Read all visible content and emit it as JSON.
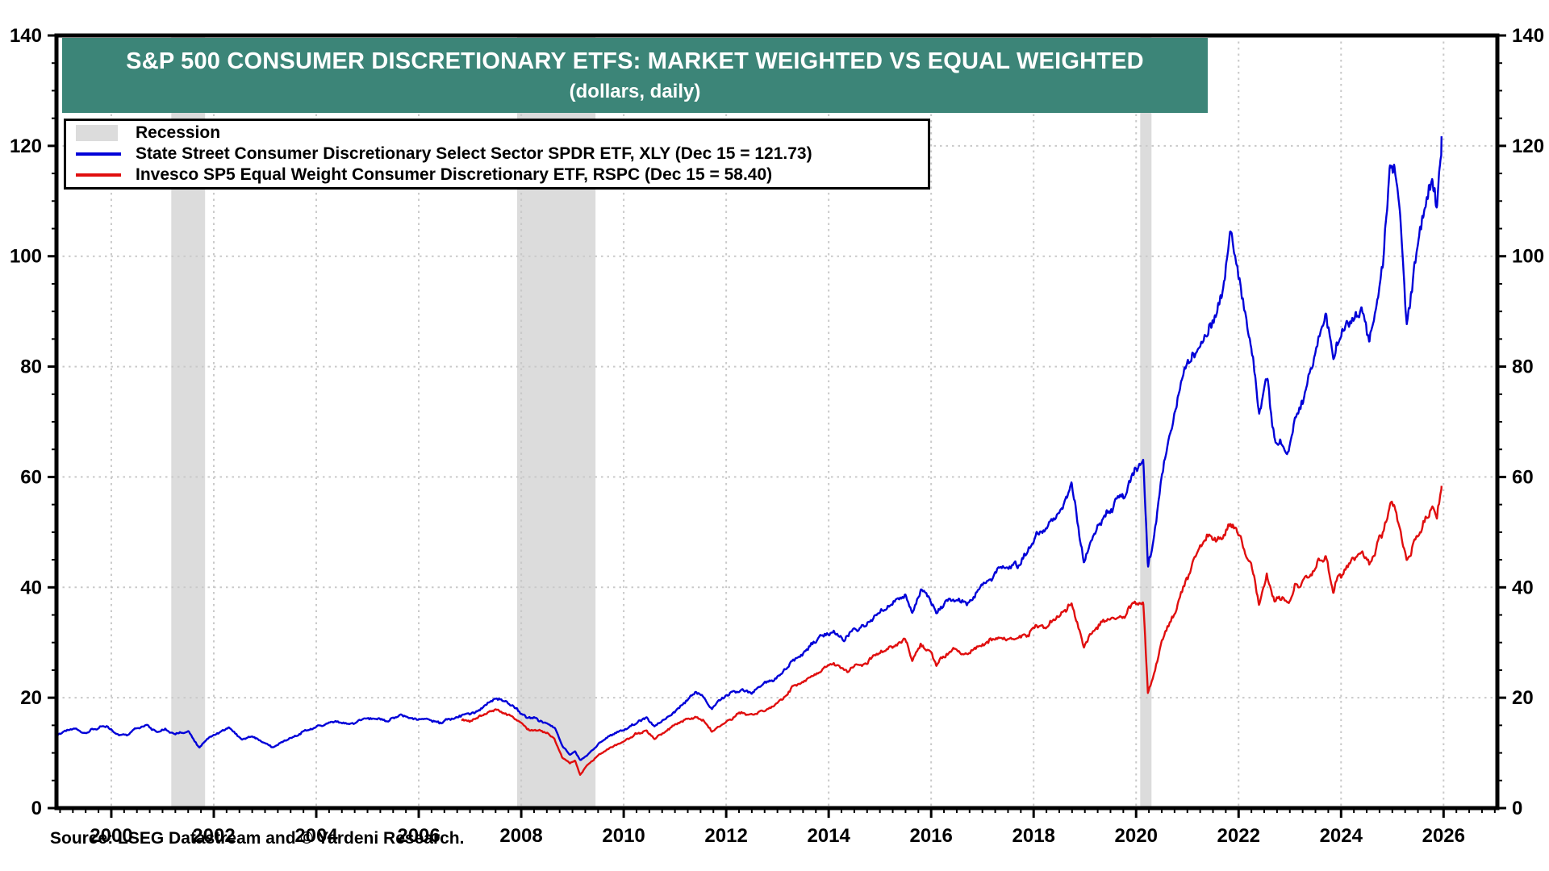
{
  "title": {
    "line1": "S&P 500 CONSUMER DISCRETIONARY ETFS: MARKET WEIGHTED VS EQUAL WEIGHTED",
    "line2": "(dollars, daily)"
  },
  "source": "Source: LSEG Datastream and © Yardeni Research.",
  "colors": {
    "banner_teal": "#3C8578",
    "xly_blue": "#0000D8",
    "rspc_red": "#E00E0E",
    "recession_gray": "#DCDCDC",
    "grid_gray": "#C9C9C9",
    "axis_black": "#000000",
    "background": "#FFFFFF"
  },
  "legend": {
    "items": [
      {
        "key": "recession",
        "type": "swatch",
        "color": "#DCDCDC",
        "label": "Recession"
      },
      {
        "key": "xly",
        "type": "line",
        "color": "#0000D8",
        "label": "State Street Consumer Discretionary Select Sector SPDR ETF, XLY (Dec 15 = 121.73)"
      },
      {
        "key": "rspc",
        "type": "line",
        "color": "#E00E0E",
        "label": "Invesco SP5 Equal Weight Consumer Discretionary ETF, RSPC (Dec 15 = 58.40)"
      }
    ]
  },
  "chart_data": {
    "type": "line",
    "title": "S&P 500 Consumer Discretionary ETFs: Market Weighted vs Equal Weighted",
    "subtitle": "(dollars, daily)",
    "xlabel": "",
    "ylabel": "dollars",
    "x_domain": [
      1998.93,
      2027.05
    ],
    "ylim": [
      0,
      140
    ],
    "y_major_ticks": [
      0,
      20,
      40,
      60,
      80,
      100,
      120,
      140
    ],
    "y_minor_step": 5,
    "x_major_ticks": [
      2000,
      2002,
      2004,
      2006,
      2008,
      2010,
      2012,
      2014,
      2016,
      2018,
      2020,
      2022,
      2024,
      2026
    ],
    "x_minor_step": 0.25,
    "grid": "dotted",
    "legend_position": "top-left",
    "recessions": [
      {
        "label": "2001 recession",
        "from": 2001.17,
        "to": 2001.83
      },
      {
        "label": "2008-09 recession",
        "from": 2007.92,
        "to": 2009.45
      },
      {
        "label": "2020 recession",
        "from": 2020.08,
        "to": 2020.3
      }
    ],
    "series": [
      {
        "name": "State Street Consumer Discretionary Select Sector SPDR ETF, XLY",
        "last_point_label": "Dec 15 = 121.73",
        "last_value": 121.73,
        "color": "#0000D8",
        "anchors": [
          [
            1998.93,
            13.0
          ],
          [
            1999.1,
            14.0
          ],
          [
            1999.3,
            14.6
          ],
          [
            1999.5,
            13.8
          ],
          [
            1999.7,
            14.6
          ],
          [
            1999.9,
            14.9
          ],
          [
            2000.1,
            13.6
          ],
          [
            2000.3,
            13.2
          ],
          [
            2000.5,
            14.6
          ],
          [
            2000.7,
            14.9
          ],
          [
            2000.9,
            13.6
          ],
          [
            2001.05,
            14.2
          ],
          [
            2001.25,
            13.2
          ],
          [
            2001.5,
            13.9
          ],
          [
            2001.72,
            10.9
          ],
          [
            2001.9,
            12.8
          ],
          [
            2002.1,
            13.8
          ],
          [
            2002.3,
            14.6
          ],
          [
            2002.55,
            12.2
          ],
          [
            2002.75,
            13.0
          ],
          [
            2002.95,
            11.9
          ],
          [
            2003.15,
            11.2
          ],
          [
            2003.4,
            12.4
          ],
          [
            2003.65,
            13.4
          ],
          [
            2003.9,
            14.3
          ],
          [
            2004.15,
            15.0
          ],
          [
            2004.4,
            15.4
          ],
          [
            2004.65,
            14.9
          ],
          [
            2004.9,
            15.8
          ],
          [
            2005.15,
            16.0
          ],
          [
            2005.4,
            15.6
          ],
          [
            2005.65,
            16.4
          ],
          [
            2005.9,
            16.1
          ],
          [
            2006.15,
            16.4
          ],
          [
            2006.4,
            15.7
          ],
          [
            2006.65,
            16.6
          ],
          [
            2006.9,
            17.2
          ],
          [
            2007.1,
            17.6
          ],
          [
            2007.3,
            18.6
          ],
          [
            2007.5,
            19.9
          ],
          [
            2007.7,
            19.2
          ],
          [
            2007.9,
            18.2
          ],
          [
            2008.1,
            16.4
          ],
          [
            2008.3,
            16.2
          ],
          [
            2008.5,
            15.6
          ],
          [
            2008.65,
            14.4
          ],
          [
            2008.8,
            11.2
          ],
          [
            2008.95,
            9.6
          ],
          [
            2009.05,
            10.2
          ],
          [
            2009.15,
            8.7
          ],
          [
            2009.3,
            9.8
          ],
          [
            2009.5,
            11.6
          ],
          [
            2009.7,
            12.8
          ],
          [
            2009.9,
            13.8
          ],
          [
            2010.1,
            14.6
          ],
          [
            2010.3,
            15.8
          ],
          [
            2010.45,
            16.1
          ],
          [
            2010.6,
            14.8
          ],
          [
            2010.8,
            16.0
          ],
          [
            2010.95,
            17.2
          ],
          [
            2011.15,
            19.0
          ],
          [
            2011.4,
            20.6
          ],
          [
            2011.55,
            20.0
          ],
          [
            2011.72,
            17.9
          ],
          [
            2011.9,
            19.6
          ],
          [
            2012.1,
            20.8
          ],
          [
            2012.3,
            21.8
          ],
          [
            2012.5,
            21.2
          ],
          [
            2012.7,
            22.6
          ],
          [
            2012.9,
            23.2
          ],
          [
            2013.1,
            24.8
          ],
          [
            2013.3,
            26.8
          ],
          [
            2013.5,
            27.6
          ],
          [
            2013.7,
            29.6
          ],
          [
            2013.95,
            31.2
          ],
          [
            2014.1,
            31.6
          ],
          [
            2014.3,
            29.8
          ],
          [
            2014.5,
            31.6
          ],
          [
            2014.7,
            32.4
          ],
          [
            2014.95,
            34.8
          ],
          [
            2015.1,
            35.6
          ],
          [
            2015.3,
            37.2
          ],
          [
            2015.5,
            38.4
          ],
          [
            2015.63,
            35.4
          ],
          [
            2015.8,
            39.2
          ],
          [
            2015.95,
            38.4
          ],
          [
            2016.1,
            35.4
          ],
          [
            2016.3,
            37.6
          ],
          [
            2016.5,
            38.4
          ],
          [
            2016.7,
            37.8
          ],
          [
            2016.9,
            39.6
          ],
          [
            2017.1,
            41.2
          ],
          [
            2017.3,
            42.6
          ],
          [
            2017.5,
            43.6
          ],
          [
            2017.7,
            44.4
          ],
          [
            2017.9,
            46.8
          ],
          [
            2018.05,
            49.4
          ],
          [
            2018.2,
            49.0
          ],
          [
            2018.4,
            51.6
          ],
          [
            2018.6,
            54.6
          ],
          [
            2018.74,
            57.2
          ],
          [
            2018.85,
            52.0
          ],
          [
            2018.98,
            44.8
          ],
          [
            2019.1,
            48.6
          ],
          [
            2019.3,
            52.4
          ],
          [
            2019.5,
            54.6
          ],
          [
            2019.7,
            56.4
          ],
          [
            2019.9,
            59.6
          ],
          [
            2020.05,
            62.4
          ],
          [
            2020.14,
            63.8
          ],
          [
            2020.23,
            43.8
          ],
          [
            2020.35,
            50.0
          ],
          [
            2020.5,
            60.0
          ],
          [
            2020.65,
            68.0
          ],
          [
            2020.8,
            73.0
          ],
          [
            2020.95,
            80.0
          ],
          [
            2021.1,
            82.5
          ],
          [
            2021.25,
            84.0
          ],
          [
            2021.4,
            87.0
          ],
          [
            2021.55,
            90.0
          ],
          [
            2021.7,
            96.0
          ],
          [
            2021.83,
            105.5
          ],
          [
            2021.95,
            101.0
          ],
          [
            2022.1,
            92.0
          ],
          [
            2022.25,
            85.0
          ],
          [
            2022.4,
            71.5
          ],
          [
            2022.55,
            78.5
          ],
          [
            2022.7,
            67.5
          ],
          [
            2022.85,
            65.5
          ],
          [
            2022.98,
            63.5
          ],
          [
            2023.1,
            69.5
          ],
          [
            2023.25,
            73.0
          ],
          [
            2023.4,
            77.5
          ],
          [
            2023.55,
            84.0
          ],
          [
            2023.7,
            87.0
          ],
          [
            2023.85,
            80.5
          ],
          [
            2023.98,
            85.5
          ],
          [
            2024.1,
            87.5
          ],
          [
            2024.25,
            89.5
          ],
          [
            2024.4,
            91.5
          ],
          [
            2024.55,
            85.5
          ],
          [
            2024.7,
            91.0
          ],
          [
            2024.82,
            99.0
          ],
          [
            2024.95,
            118.5
          ],
          [
            2025.05,
            116.0
          ],
          [
            2025.15,
            108.0
          ],
          [
            2025.28,
            87.5
          ],
          [
            2025.4,
            96.0
          ],
          [
            2025.55,
            105.0
          ],
          [
            2025.65,
            108.5
          ],
          [
            2025.78,
            114.5
          ],
          [
            2025.87,
            110.5
          ],
          [
            2025.96,
            121.73
          ]
        ]
      },
      {
        "name": "Invesco SP5 Equal Weight Consumer Discretionary ETF, RSPC",
        "last_point_label": "Dec 15 = 58.40",
        "last_value": 58.4,
        "color": "#E00E0E",
        "anchors": [
          [
            2006.83,
            16.2
          ],
          [
            2007.0,
            16.0
          ],
          [
            2007.2,
            16.8
          ],
          [
            2007.4,
            17.4
          ],
          [
            2007.55,
            17.9
          ],
          [
            2007.75,
            16.9
          ],
          [
            2007.95,
            16.0
          ],
          [
            2008.1,
            14.4
          ],
          [
            2008.3,
            14.2
          ],
          [
            2008.5,
            13.8
          ],
          [
            2008.65,
            12.6
          ],
          [
            2008.8,
            9.4
          ],
          [
            2008.95,
            8.2
          ],
          [
            2009.05,
            8.6
          ],
          [
            2009.15,
            6.0
          ],
          [
            2009.3,
            7.8
          ],
          [
            2009.5,
            9.6
          ],
          [
            2009.7,
            10.8
          ],
          [
            2009.9,
            11.8
          ],
          [
            2010.1,
            12.6
          ],
          [
            2010.3,
            13.6
          ],
          [
            2010.45,
            14.0
          ],
          [
            2010.6,
            12.8
          ],
          [
            2010.8,
            13.8
          ],
          [
            2010.95,
            14.8
          ],
          [
            2011.15,
            15.8
          ],
          [
            2011.4,
            16.6
          ],
          [
            2011.55,
            16.2
          ],
          [
            2011.72,
            13.9
          ],
          [
            2011.9,
            15.2
          ],
          [
            2012.1,
            16.2
          ],
          [
            2012.3,
            17.2
          ],
          [
            2012.5,
            16.8
          ],
          [
            2012.7,
            17.8
          ],
          [
            2012.9,
            18.4
          ],
          [
            2013.1,
            19.8
          ],
          [
            2013.3,
            21.8
          ],
          [
            2013.5,
            22.8
          ],
          [
            2013.7,
            24.6
          ],
          [
            2013.95,
            25.6
          ],
          [
            2014.1,
            25.8
          ],
          [
            2014.3,
            24.4
          ],
          [
            2014.5,
            25.8
          ],
          [
            2014.7,
            26.4
          ],
          [
            2014.95,
            27.8
          ],
          [
            2015.1,
            28.4
          ],
          [
            2015.3,
            29.6
          ],
          [
            2015.5,
            30.4
          ],
          [
            2015.63,
            26.9
          ],
          [
            2015.8,
            29.8
          ],
          [
            2015.95,
            28.8
          ],
          [
            2016.1,
            26.4
          ],
          [
            2016.3,
            28.2
          ],
          [
            2016.5,
            28.8
          ],
          [
            2016.7,
            28.2
          ],
          [
            2016.9,
            29.6
          ],
          [
            2017.1,
            30.2
          ],
          [
            2017.3,
            30.8
          ],
          [
            2017.5,
            31.0
          ],
          [
            2017.7,
            30.8
          ],
          [
            2017.9,
            31.8
          ],
          [
            2018.05,
            33.2
          ],
          [
            2018.2,
            33.0
          ],
          [
            2018.4,
            34.4
          ],
          [
            2018.6,
            35.4
          ],
          [
            2018.74,
            36.2
          ],
          [
            2018.85,
            33.0
          ],
          [
            2018.98,
            28.8
          ],
          [
            2019.1,
            31.4
          ],
          [
            2019.3,
            33.4
          ],
          [
            2019.5,
            34.2
          ],
          [
            2019.7,
            34.6
          ],
          [
            2019.9,
            36.0
          ],
          [
            2020.05,
            36.8
          ],
          [
            2020.14,
            37.2
          ],
          [
            2020.23,
            20.5
          ],
          [
            2020.35,
            24.5
          ],
          [
            2020.5,
            30.0
          ],
          [
            2020.65,
            33.5
          ],
          [
            2020.8,
            36.5
          ],
          [
            2020.95,
            41.0
          ],
          [
            2021.1,
            44.5
          ],
          [
            2021.25,
            46.5
          ],
          [
            2021.4,
            48.5
          ],
          [
            2021.55,
            48.0
          ],
          [
            2021.7,
            49.5
          ],
          [
            2021.83,
            52.5
          ],
          [
            2021.95,
            51.0
          ],
          [
            2022.1,
            47.5
          ],
          [
            2022.25,
            44.5
          ],
          [
            2022.4,
            37.5
          ],
          [
            2022.55,
            42.0
          ],
          [
            2022.7,
            37.5
          ],
          [
            2022.85,
            38.5
          ],
          [
            2022.98,
            37.0
          ],
          [
            2023.1,
            40.5
          ],
          [
            2023.25,
            42.0
          ],
          [
            2023.4,
            42.5
          ],
          [
            2023.55,
            44.5
          ],
          [
            2023.7,
            45.5
          ],
          [
            2023.85,
            39.5
          ],
          [
            2023.98,
            42.5
          ],
          [
            2024.1,
            43.5
          ],
          [
            2024.25,
            45.0
          ],
          [
            2024.4,
            46.5
          ],
          [
            2024.55,
            44.0
          ],
          [
            2024.7,
            47.0
          ],
          [
            2024.82,
            49.5
          ],
          [
            2024.95,
            54.5
          ],
          [
            2025.05,
            53.5
          ],
          [
            2025.15,
            50.5
          ],
          [
            2025.28,
            43.8
          ],
          [
            2025.4,
            47.5
          ],
          [
            2025.55,
            50.5
          ],
          [
            2025.65,
            52.0
          ],
          [
            2025.78,
            55.0
          ],
          [
            2025.87,
            53.0
          ],
          [
            2025.96,
            58.4
          ]
        ]
      }
    ]
  }
}
